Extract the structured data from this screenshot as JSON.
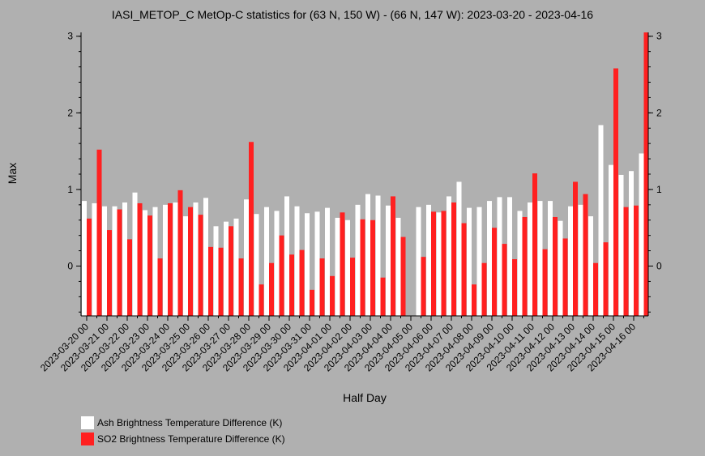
{
  "chart_data": {
    "type": "bar",
    "title": "IASI_METOP_C MetOp-C statistics for (63 N, 150 W) - (66 N, 147 W): 2023-03-20 - 2023-04-16",
    "xlabel": "Half Day",
    "ylabel": "Max",
    "ylim": [
      -0.65,
      3.05
    ],
    "yticks": [
      0,
      1,
      2,
      3
    ],
    "x_tick_labels": [
      "2023-03-20 00",
      "2023-03-21 00",
      "2023-03-22 00",
      "2023-03-23 00",
      "2023-03-24 00",
      "2023-03-25 00",
      "2023-03-26 00",
      "2023-03-27 00",
      "2023-03-28 00",
      "2023-03-29 00",
      "2023-03-30 00",
      "2023-03-31 00",
      "2023-04-01 00",
      "2023-04-02 00",
      "2023-04-03 00",
      "2023-04-04 00",
      "2023-04-05 00",
      "2023-04-06 00",
      "2023-04-07 00",
      "2023-04-08 00",
      "2023-04-09 00",
      "2023-04-10 00",
      "2023-04-11 00",
      "2023-04-12 00",
      "2023-04-13 00",
      "2023-04-14 00",
      "2023-04-15 00",
      "2023-04-16 00"
    ],
    "legend_position": "bottom-left",
    "series": [
      {
        "name": "Ash Brightness Temperature Difference (K)",
        "color": "#ffffff",
        "values": [
          0.85,
          0.82,
          0.78,
          0.78,
          0.83,
          0.96,
          0.73,
          0.77,
          0.8,
          0.83,
          0.65,
          0.83,
          0.89,
          0.52,
          0.58,
          0.62,
          0.87,
          0.68,
          0.77,
          0.72,
          0.91,
          0.78,
          0.69,
          0.71,
          0.76,
          0.63,
          0.6,
          0.8,
          0.94,
          0.92,
          0.79,
          0.63,
          null,
          0.77,
          0.8,
          0.7,
          0.91,
          1.1,
          0.76,
          0.77,
          0.85,
          0.9,
          0.9,
          0.72,
          0.83,
          0.85,
          0.85,
          0.59,
          0.78,
          0.8,
          0.65,
          1.84,
          1.32,
          1.19,
          1.24,
          1.47
        ]
      },
      {
        "name": "SO2 Brightness Temperature Difference (K)",
        "color": "#ff2020",
        "values": [
          0.62,
          1.52,
          0.47,
          0.74,
          0.35,
          0.82,
          0.66,
          0.1,
          0.82,
          0.99,
          0.77,
          0.67,
          0.25,
          0.24,
          0.52,
          0.1,
          1.62,
          -0.24,
          0.04,
          0.4,
          0.15,
          0.21,
          -0.31,
          0.1,
          -0.13,
          0.7,
          0.11,
          0.61,
          0.6,
          -0.15,
          0.91,
          0.38,
          null,
          0.12,
          0.71,
          0.72,
          0.83,
          0.56,
          -0.24,
          0.04,
          0.5,
          0.29,
          0.09,
          0.64,
          1.21,
          0.22,
          0.64,
          0.36,
          1.1,
          0.94,
          0.04,
          0.31,
          2.58,
          0.77,
          0.79,
          3.06
        ]
      }
    ]
  }
}
